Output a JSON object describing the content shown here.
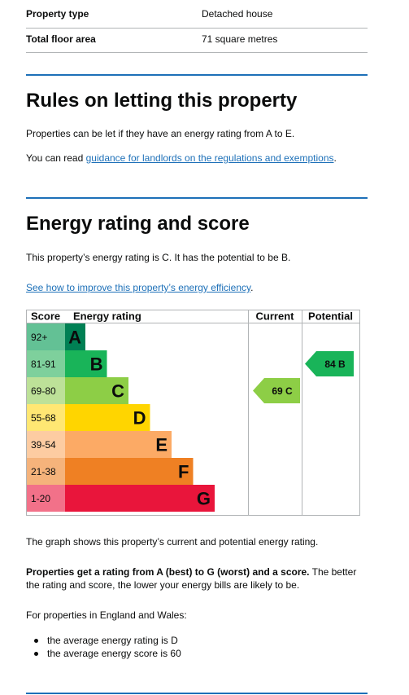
{
  "summary": [
    {
      "label": "Property type",
      "value": "Detached house"
    },
    {
      "label": "Total floor area",
      "value": "71 square metres"
    }
  ],
  "letting": {
    "heading": "Rules on letting this property",
    "p1": "Properties can be let if they have an energy rating from A to E.",
    "p2_pre": "You can read ",
    "p2_link": "guidance for landlords on the regulations and exemptions",
    "p2_post": "."
  },
  "energy": {
    "heading": "Energy rating and score",
    "p1": "This property’s energy rating is C. It has the potential to be B.",
    "link": "See how to improve this property’s energy efficiency",
    "link_post": "."
  },
  "chart_data": {
    "type": "table",
    "headers": {
      "score": "Score",
      "rating": "Energy rating",
      "current": "Current",
      "potential": "Potential"
    },
    "bands": [
      {
        "score": "92+",
        "letter": "A",
        "color": "#008054",
        "tint": "#63c195"
      },
      {
        "score": "81-91",
        "letter": "B",
        "color": "#19b459",
        "tint": "#7ed09c"
      },
      {
        "score": "69-80",
        "letter": "C",
        "color": "#8dce46",
        "tint": "#bde198"
      },
      {
        "score": "55-68",
        "letter": "D",
        "color": "#ffd500",
        "tint": "#ffe773"
      },
      {
        "score": "39-54",
        "letter": "E",
        "color": "#fcaa65",
        "tint": "#fdcca2"
      },
      {
        "score": "21-38",
        "letter": "F",
        "color": "#ef8023",
        "tint": "#f5b37b"
      },
      {
        "score": "1-20",
        "letter": "G",
        "color": "#e9153b",
        "tint": "#f27189"
      }
    ],
    "current": {
      "score": 69,
      "letter": "C",
      "label": "69 C",
      "color": "#8dce46"
    },
    "potential": {
      "score": 84,
      "letter": "B",
      "label": "84 B",
      "color": "#19b459"
    }
  },
  "after_chart": {
    "p1": "The graph shows this property’s current and potential energy rating.",
    "p2_bold": "Properties get a rating from A (best) to G (worst) and a score.",
    "p2_rest": " The better the rating and score, the lower your energy bills are likely to be.",
    "p3": "For properties in England and Wales:",
    "bullets": [
      "the average energy rating is D",
      "the average energy score is 60"
    ]
  }
}
